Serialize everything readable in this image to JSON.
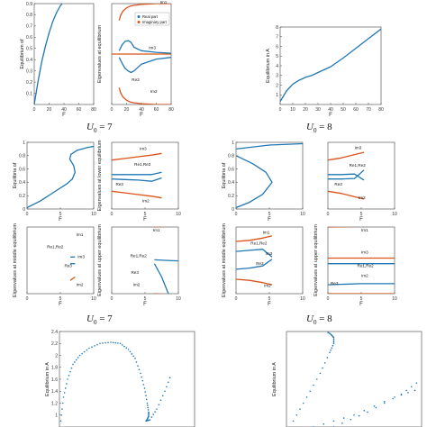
{
  "captions": [
    {
      "var": "U",
      "sub": "0",
      "eq": " = 7"
    },
    {
      "var": "U",
      "sub": "0",
      "eq": " = 8"
    },
    {
      "var": "U",
      "sub": "0",
      "eq": " = 7"
    },
    {
      "var": "U",
      "sub": "0",
      "eq": " = 8"
    }
  ],
  "colors": {
    "real": "#1f77b4",
    "imag": "#d95319",
    "axis": "#444444",
    "grid": "#e6e6e6"
  },
  "chart_data": [
    {
      "id": "u7_equilibrium",
      "type": "line",
      "xlabel": "F",
      "ylabel": "Equilibrium of",
      "xlim": [
        0,
        80
      ],
      "ylim": [
        0,
        0.9
      ],
      "xticks": [
        0,
        20,
        40,
        60,
        80
      ],
      "yticks": [
        0.1,
        0.2,
        0.3,
        0.4,
        0.5,
        0.6,
        0.7,
        0.8,
        0.9
      ],
      "series": [
        {
          "color": "real",
          "x": [
            0,
            5,
            10,
            15,
            20,
            25,
            30,
            35,
            40
          ],
          "y": [
            0.0,
            0.2,
            0.38,
            0.52,
            0.64,
            0.74,
            0.82,
            0.88,
            0.92
          ]
        }
      ]
    },
    {
      "id": "u7_eigenvalues",
      "type": "line",
      "xlabel": "F",
      "ylabel": "Eigenvalues at equilibrium",
      "xlim": [
        0,
        80
      ],
      "ylim": [
        -3,
        3
      ],
      "xticks": [
        0,
        20,
        40,
        60,
        80
      ],
      "yticks": [],
      "legend": [
        "Real part",
        "Imaginary part"
      ],
      "legend_position": "top-right",
      "labels": [
        {
          "text": "Im3",
          "x": 50,
          "y": 0.3
        },
        {
          "text": "Re3",
          "x": 27,
          "y": -1.6
        },
        {
          "text": "Im2",
          "x": 52,
          "y": -2.3
        },
        {
          "text": "Im1",
          "x": 65,
          "y": 3.0
        }
      ],
      "series": [
        {
          "color": "imag",
          "x": [
            10,
            12,
            15,
            20,
            25,
            30,
            40,
            60,
            80
          ],
          "y": [
            2.0,
            2.3,
            2.55,
            2.75,
            2.85,
            2.9,
            2.95,
            3.0,
            3.0
          ]
        },
        {
          "color": "imag",
          "x": [
            10,
            12,
            15,
            20,
            25,
            30,
            40,
            60,
            80
          ],
          "y": [
            -2.0,
            -2.3,
            -2.55,
            -2.75,
            -2.85,
            -2.9,
            -2.95,
            -3.0,
            -3.0
          ]
        },
        {
          "color": "imag",
          "x": [
            0,
            10,
            20,
            30,
            40,
            60,
            80
          ],
          "y": [
            0,
            0,
            0,
            0,
            0,
            0,
            0
          ]
        },
        {
          "color": "real",
          "x": [
            10,
            14,
            18,
            22,
            26,
            30,
            40,
            60,
            80
          ],
          "y": [
            0.2,
            0.55,
            0.75,
            0.8,
            0.7,
            0.4,
            0.2,
            0.1,
            0.05
          ]
        },
        {
          "color": "real",
          "x": [
            10,
            14,
            18,
            22,
            26,
            30,
            40,
            60,
            80
          ],
          "y": [
            -0.2,
            -0.55,
            -0.85,
            -1.0,
            -1.1,
            -1.0,
            -0.6,
            -0.3,
            -0.2
          ]
        }
      ]
    },
    {
      "id": "u8_equilibrium_small",
      "type": "line",
      "xlabel": "F",
      "ylabel": "Equilibrium in A",
      "xlim": [
        0,
        80
      ],
      "ylim": [
        0,
        8
      ],
      "xticks": [
        0,
        10,
        20,
        30,
        40,
        50,
        60,
        70,
        80
      ],
      "yticks": [
        1,
        2,
        3,
        4,
        5,
        6,
        7,
        8
      ],
      "series": [
        {
          "color": "real",
          "x": [
            0,
            5,
            10,
            15,
            20,
            25,
            30,
            40,
            50,
            60,
            70,
            80
          ],
          "y": [
            0.3,
            1.4,
            2.1,
            2.5,
            2.8,
            3.0,
            3.3,
            3.9,
            4.8,
            5.8,
            6.8,
            7.8
          ]
        }
      ]
    },
    {
      "id": "u7_equilibrium_s",
      "type": "line",
      "xlabel": "F",
      "ylabel": "Equilibria of",
      "xlim": [
        0,
        10
      ],
      "ylim": [
        0,
        1
      ],
      "xticks": [
        0,
        5,
        10
      ],
      "yticks": [
        0,
        0.2,
        0.4,
        0.6,
        0.8,
        1.0
      ],
      "series": [
        {
          "color": "real",
          "x": [
            0,
            2,
            4,
            6,
            6.8,
            7.2,
            7.0,
            6.4,
            6.6,
            7.5,
            9,
            10
          ],
          "y": [
            0.02,
            0.12,
            0.25,
            0.38,
            0.45,
            0.55,
            0.65,
            0.75,
            0.82,
            0.88,
            0.92,
            0.94
          ]
        }
      ]
    },
    {
      "id": "u7_eig_lower",
      "type": "line",
      "xlabel": "F",
      "ylabel": "Eigenvalues at lower equilibrium",
      "xlim": [
        0,
        10
      ],
      "ylim": [
        -3,
        3
      ],
      "xticks": [
        0,
        5,
        10
      ],
      "yticks": [],
      "labels": [
        {
          "text": "Im3",
          "x": 4.2,
          "y": 2.3
        },
        {
          "text": "Re1,Re2",
          "x": 3.4,
          "y": 0.9
        },
        {
          "text": "Re3",
          "x": 0.6,
          "y": -0.9
        },
        {
          "text": "Im2",
          "x": 4.6,
          "y": -2.4
        }
      ],
      "series": [
        {
          "color": "imag",
          "x": [
            0,
            2,
            4,
            6,
            7.5
          ],
          "y": [
            1.4,
            1.55,
            1.7,
            1.85,
            2.0
          ]
        },
        {
          "color": "imag",
          "x": [
            0,
            2,
            4,
            6,
            7.5
          ],
          "y": [
            -1.4,
            -1.55,
            -1.7,
            -1.85,
            -2.0
          ]
        },
        {
          "color": "real",
          "x": [
            0,
            2,
            4,
            6,
            7.5
          ],
          "y": [
            -0.3,
            -0.35,
            -0.4,
            -0.5,
            -0.2
          ]
        },
        {
          "color": "real",
          "x": [
            0,
            2,
            4,
            6,
            7.5
          ],
          "y": [
            0.1,
            0.1,
            0.1,
            0.1,
            0.3
          ]
        }
      ]
    },
    {
      "id": "u8_equilibrium_s",
      "type": "line",
      "xlabel": "F",
      "ylabel": "Equilibria of",
      "xlim": [
        0,
        10
      ],
      "ylim": [
        0,
        1
      ],
      "xticks": [
        0,
        5,
        10
      ],
      "yticks": [
        0,
        0.2,
        0.4,
        0.6,
        0.8,
        1.0
      ],
      "series": [
        {
          "color": "real",
          "x": [
            0,
            2,
            4,
            5.4,
            4.5,
            2.5,
            0
          ],
          "y": [
            0.02,
            0.1,
            0.22,
            0.4,
            0.55,
            0.68,
            0.8
          ]
        },
        {
          "color": "real",
          "x": [
            0,
            5,
            10
          ],
          "y": [
            0.9,
            0.96,
            0.98
          ]
        }
      ]
    },
    {
      "id": "u8_eig_lower",
      "type": "line",
      "xlabel": "F",
      "ylabel": "",
      "xlim": [
        0,
        10
      ],
      "ylim": [
        -3,
        3
      ],
      "xticks": [
        0,
        5,
        10
      ],
      "yticks": [],
      "labels": [
        {
          "text": "Im3",
          "x": 4.0,
          "y": 2.4
        },
        {
          "text": "Re1,Re2",
          "x": 3.2,
          "y": 0.8
        },
        {
          "text": "Re3",
          "x": 1.0,
          "y": -0.9
        },
        {
          "text": "Im2",
          "x": 4.6,
          "y": -2.1
        }
      ],
      "series": [
        {
          "color": "imag",
          "x": [
            0,
            2,
            4,
            5.4
          ],
          "y": [
            1.4,
            1.6,
            1.9,
            2.1
          ]
        },
        {
          "color": "imag",
          "x": [
            0,
            2,
            4,
            5.4
          ],
          "y": [
            -1.4,
            -1.6,
            -1.9,
            -2.1
          ]
        },
        {
          "color": "real",
          "x": [
            0,
            2,
            4,
            5.4
          ],
          "y": [
            -0.3,
            -0.3,
            -0.25,
            0.5
          ]
        },
        {
          "color": "real",
          "x": [
            0,
            2,
            4,
            5.4
          ],
          "y": [
            0.1,
            0.1,
            0.15,
            -0.4
          ]
        }
      ]
    },
    {
      "id": "u7_eig_middle",
      "type": "line",
      "xlabel": "F",
      "ylabel": "Eigenvalues at middle equilibrium",
      "xlim": [
        0,
        10
      ],
      "ylim": [
        -3,
        3
      ],
      "xticks": [
        0,
        5,
        10
      ],
      "yticks": [],
      "labels": [
        {
          "text": "Im1",
          "x": 7.4,
          "y": 2.2
        },
        {
          "text": "Re1,Re2",
          "x": 3.0,
          "y": 1.1
        },
        {
          "text": "Im3",
          "x": 7.6,
          "y": 0.2
        },
        {
          "text": "Re3",
          "x": 5.6,
          "y": -0.6
        },
        {
          "text": "Im2",
          "x": 7.4,
          "y": -2.3
        }
      ],
      "series": [
        {
          "color": "imag",
          "x": [
            6.5,
            7.2
          ],
          "y": [
            -1.8,
            -1.5
          ]
        },
        {
          "color": "real",
          "x": [
            6.5,
            7.2
          ],
          "y": [
            0.3,
            0.3
          ]
        },
        {
          "color": "real",
          "x": [
            6.5,
            7.2
          ],
          "y": [
            -0.3,
            -0.3
          ]
        }
      ]
    },
    {
      "id": "u7_eig_upper",
      "type": "line",
      "xlabel": "F",
      "ylabel": "Eigenvalues at upper equilibrium",
      "xlim": [
        0,
        10
      ],
      "ylim": [
        -3,
        3
      ],
      "xticks": [
        0,
        5,
        10
      ],
      "yticks": [],
      "labels": [
        {
          "text": "Im1",
          "x": 6.2,
          "y": 2.6
        },
        {
          "text": "Re1,Re2",
          "x": 2.8,
          "y": 0.3
        },
        {
          "text": "Re3",
          "x": 2.9,
          "y": -1.2
        },
        {
          "text": "Im2",
          "x": 3.2,
          "y": -2.3
        }
      ],
      "series": [
        {
          "color": "imag",
          "x": [
            6.4,
            8,
            10
          ],
          "y": [
            3.0,
            3.05,
            3.1
          ]
        },
        {
          "color": "imag",
          "x": [
            6.4,
            8,
            10
          ],
          "y": [
            -3.0,
            -3.05,
            -3.1
          ]
        },
        {
          "color": "real",
          "x": [
            6.4,
            8,
            10
          ],
          "y": [
            0.05,
            0.0,
            -0.05
          ]
        },
        {
          "color": "real",
          "x": [
            6.4,
            7.5,
            8.5
          ],
          "y": [
            -0.3,
            -1.5,
            -3.0
          ]
        }
      ]
    },
    {
      "id": "u8_eig_middle",
      "type": "line",
      "xlabel": "F",
      "ylabel": "Eigenvalues at middle equilibrium",
      "xlim": [
        0,
        10
      ],
      "ylim": [
        -3,
        3
      ],
      "xticks": [
        0,
        5,
        10
      ],
      "yticks": [],
      "labels": [
        {
          "text": "Im1",
          "x": 4.0,
          "y": 2.4
        },
        {
          "text": "Re1,Re2",
          "x": 2.2,
          "y": 1.4
        },
        {
          "text": "Im3",
          "x": 4.4,
          "y": 0.5
        },
        {
          "text": "Re3",
          "x": 3.0,
          "y": -0.4
        },
        {
          "text": "Im2",
          "x": 4.2,
          "y": -2.4
        }
      ],
      "series": [
        {
          "color": "imag",
          "x": [
            0,
            2,
            4,
            5.4
          ],
          "y": [
            1.7,
            1.8,
            2.0,
            2.2
          ]
        },
        {
          "color": "imag",
          "x": [
            0,
            2,
            4,
            5.4
          ],
          "y": [
            -1.7,
            -1.8,
            -2.0,
            -2.2
          ]
        },
        {
          "color": "real",
          "x": [
            0,
            2,
            4,
            5.4
          ],
          "y": [
            0.8,
            0.9,
            1.0,
            0.3
          ]
        },
        {
          "color": "real",
          "x": [
            0,
            2,
            4,
            5.4
          ],
          "y": [
            -0.8,
            -0.7,
            -0.5,
            0.1
          ]
        }
      ]
    },
    {
      "id": "u8_eig_upper",
      "type": "line",
      "xlabel": "F",
      "ylabel": "Eigenvalues at upper equilibrium",
      "xlim": [
        0,
        10
      ],
      "ylim": [
        -3,
        3
      ],
      "xticks": [
        0,
        5,
        10
      ],
      "yticks": [],
      "labels": [
        {
          "text": "Im1",
          "x": 5.0,
          "y": 2.6
        },
        {
          "text": "Im3",
          "x": 5.0,
          "y": 0.6
        },
        {
          "text": "Re1,Re2",
          "x": 4.4,
          "y": -0.6
        },
        {
          "text": "Re3",
          "x": 0.4,
          "y": -2.2
        },
        {
          "text": "Im2",
          "x": 5.0,
          "y": -1.5
        }
      ],
      "series": [
        {
          "color": "imag",
          "x": [
            0,
            5,
            10
          ],
          "y": [
            3.0,
            3.05,
            3.1
          ]
        },
        {
          "color": "imag",
          "x": [
            0,
            5,
            10
          ],
          "y": [
            -3.0,
            -3.0,
            -3.0
          ]
        },
        {
          "color": "imag",
          "x": [
            0,
            5,
            10
          ],
          "y": [
            0.2,
            0.2,
            0.2
          ]
        },
        {
          "color": "real",
          "x": [
            0,
            5,
            10
          ],
          "y": [
            -0.3,
            -0.3,
            -0.3
          ]
        },
        {
          "color": "real",
          "x": [
            0,
            5,
            10
          ],
          "y": [
            -2.2,
            -2.1,
            -2.1
          ]
        }
      ]
    },
    {
      "id": "u7_large_equilibrium",
      "type": "scatter",
      "xlabel": "",
      "ylabel": "Equilibrium in A",
      "xlim": [
        0,
        10
      ],
      "ylim": [
        0.8,
        2.4
      ],
      "xticks": [],
      "yticks": [
        1,
        1.2,
        1.4,
        1.6,
        1.8,
        2.0,
        2.2,
        2.4
      ],
      "series": [
        {
          "color": "real",
          "x": [
            0.1,
            0.3,
            0.6,
            1.0,
            1.5,
            2.2,
            3.0,
            3.8,
            4.5,
            5.1,
            5.6,
            6.0,
            6.3,
            6.5,
            6.6,
            6.6,
            6.5,
            6.4
          ],
          "y": [
            0.9,
            1.3,
            1.6,
            1.85,
            2.0,
            2.12,
            2.2,
            2.22,
            2.2,
            2.1,
            1.95,
            1.7,
            1.45,
            1.2,
            1.05,
            0.98,
            0.93,
            0.9
          ]
        },
        {
          "color": "real",
          "x": [
            6.4,
            6.7,
            7.2,
            7.8,
            8.3
          ],
          "y": [
            0.9,
            0.92,
            1.1,
            1.4,
            1.7
          ]
        }
      ]
    },
    {
      "id": "u8_large_equilibrium",
      "type": "scatter",
      "xlabel": "",
      "ylabel": "Equilibrium in A",
      "xlim": [
        0,
        10
      ],
      "ylim": [
        0.8,
        2.4
      ],
      "xticks": [],
      "yticks": [],
      "series": [
        {
          "color": "real",
          "x": [
            0.5,
            1.5,
            2.5,
            3.2,
            3.5,
            3.5,
            3.3,
            3.0
          ],
          "y": [
            0.9,
            1.3,
            1.7,
            2.05,
            2.2,
            2.3,
            2.35,
            2.4
          ]
        },
        {
          "color": "real",
          "x": [
            2.0,
            5.0,
            8.0,
            10.0
          ],
          "y": [
            0.8,
            1.0,
            1.3,
            1.45
          ]
        },
        {
          "color": "real",
          "x": [
            3.5,
            6.0,
            8.5,
            10.0
          ],
          "y": [
            0.8,
            1.05,
            1.35,
            1.6
          ]
        }
      ]
    }
  ]
}
